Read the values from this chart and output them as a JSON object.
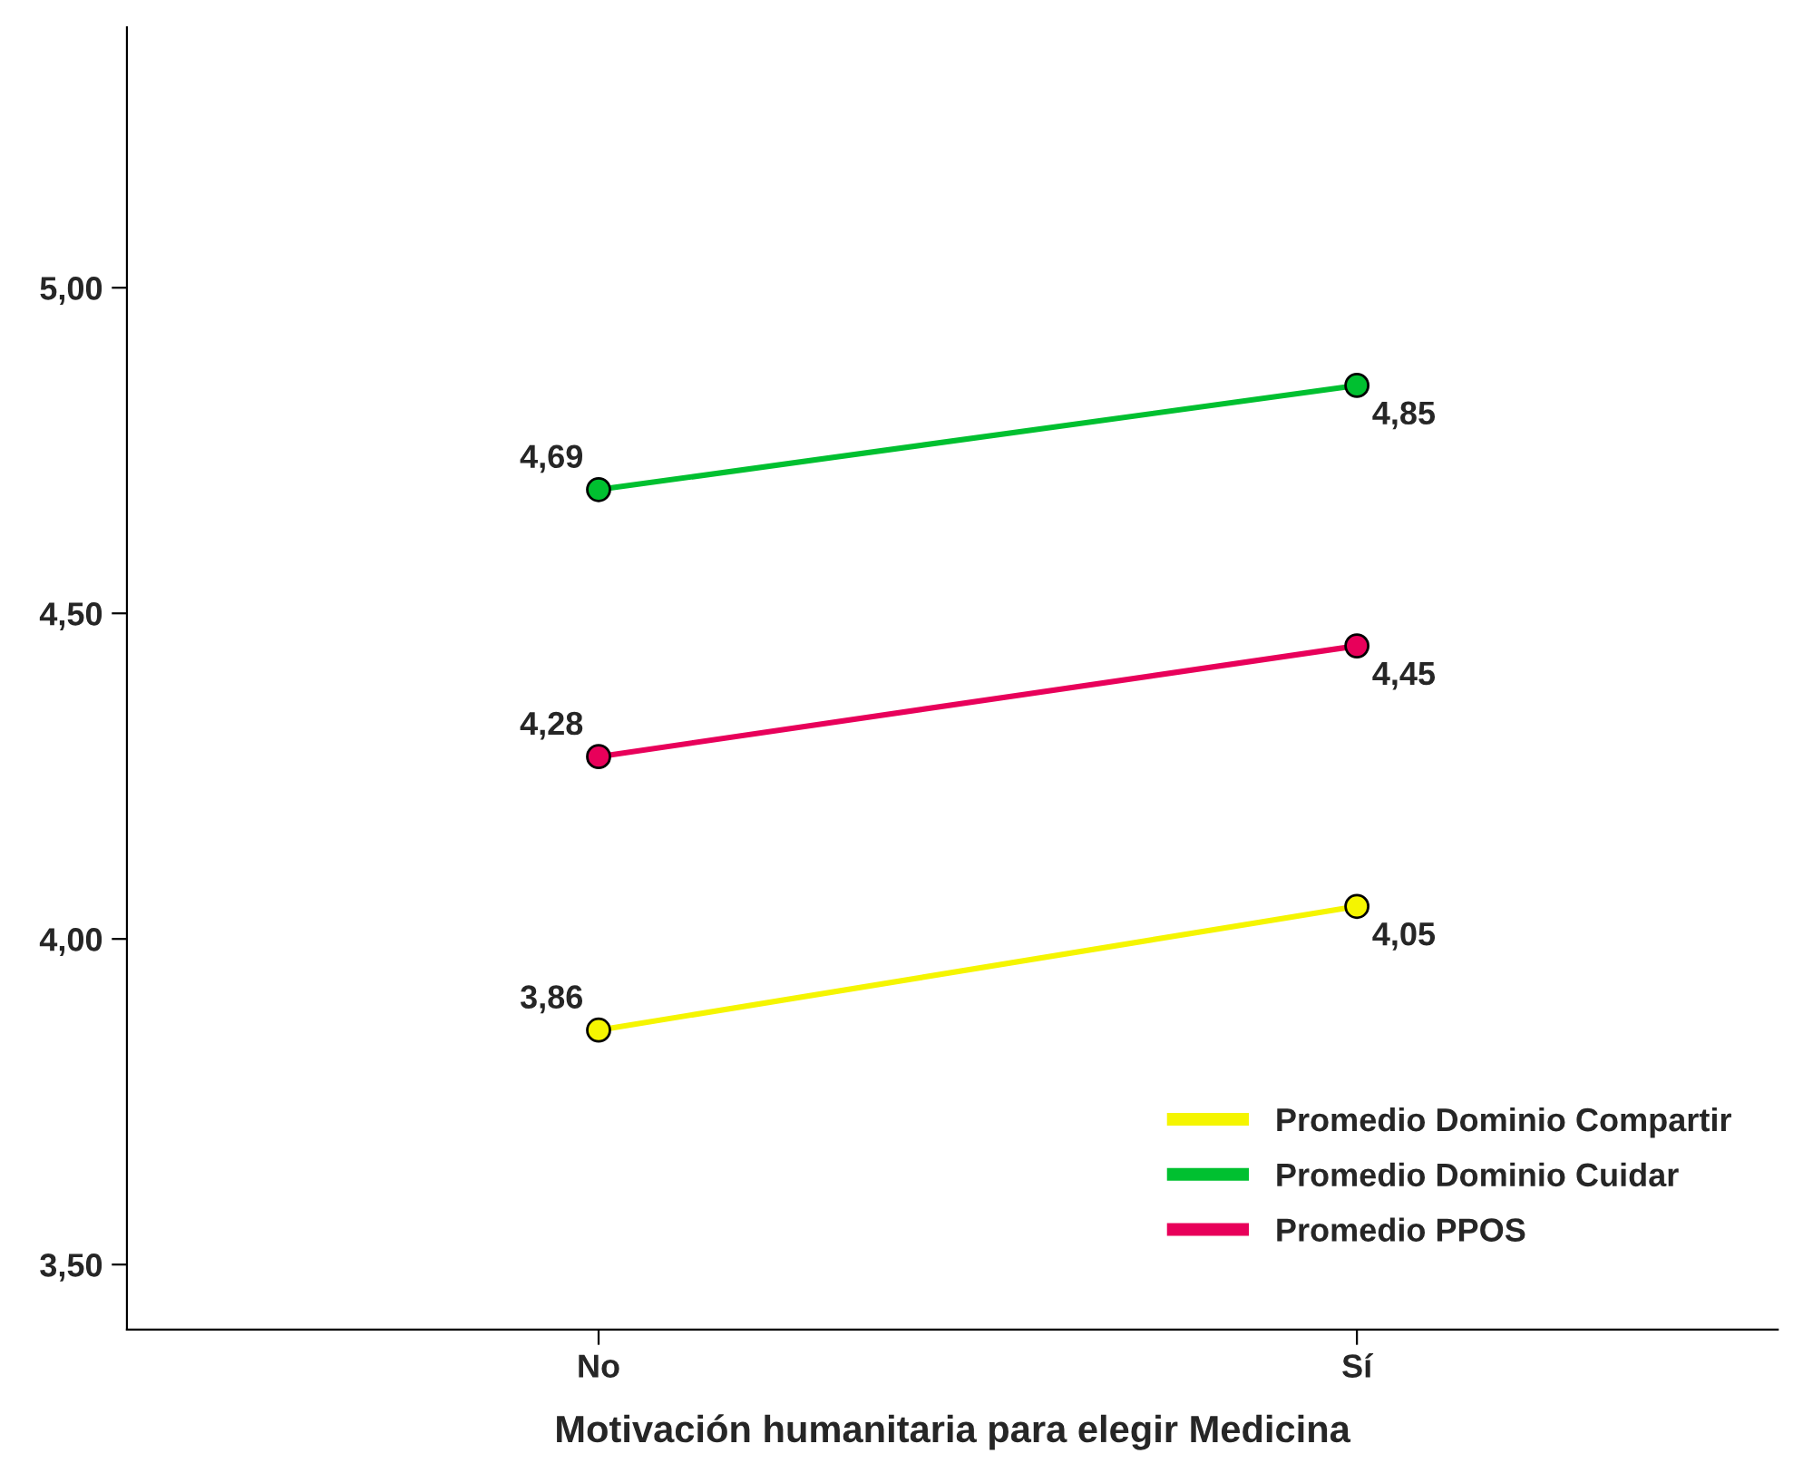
{
  "chart_data": {
    "type": "line",
    "xlabel": "Motivación humanitaria para elegir Medicina",
    "categories": [
      "No",
      "Sí"
    ],
    "series": [
      {
        "name": "Promedio Dominio Compartir",
        "color": "#f5f500",
        "values": [
          3.86,
          4.05
        ],
        "value_labels": [
          "3,86",
          "4,05"
        ]
      },
      {
        "name": "Promedio Dominio Cuidar",
        "color": "#00c030",
        "values": [
          4.69,
          4.85
        ],
        "value_labels": [
          "4,69",
          "4,85"
        ]
      },
      {
        "name": "Promedio PPOS",
        "color": "#e8005a",
        "values": [
          4.28,
          4.45
        ],
        "value_labels": [
          "4,28",
          "4,45"
        ]
      }
    ],
    "ylim": [
      3.4,
      5.4
    ],
    "yticks": [
      {
        "value": 3.5,
        "label": "3,50"
      },
      {
        "value": 4.0,
        "label": "4,00"
      },
      {
        "value": 4.5,
        "label": "4,50"
      },
      {
        "value": 5.0,
        "label": "5,00"
      }
    ],
    "grid": false,
    "legend": "bottom right",
    "marker": "circle",
    "line_style": "solid"
  }
}
